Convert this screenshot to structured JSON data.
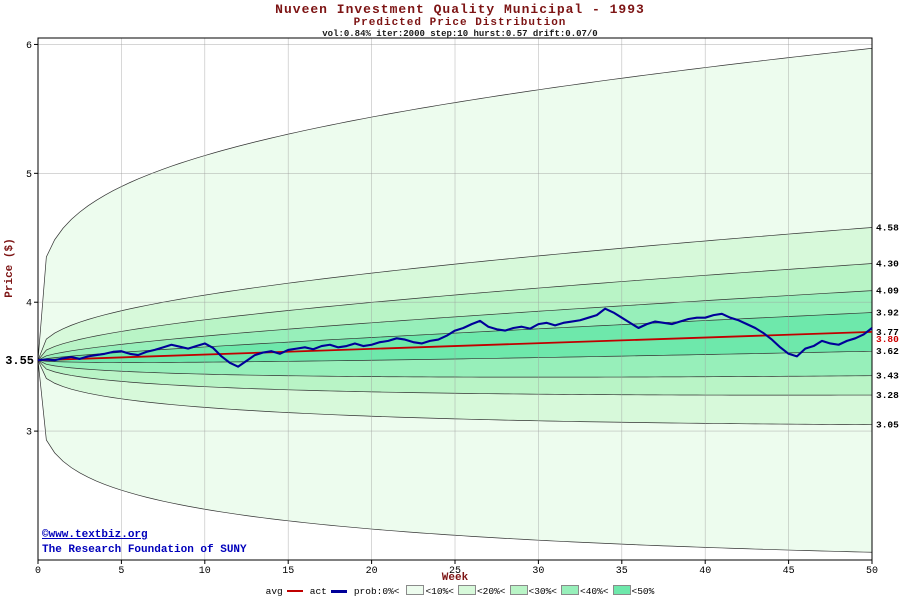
{
  "watermark": {
    "line1": "©www.textbiz.org",
    "line2": "The Research Foundation of SUNY"
  },
  "legend": {
    "avg": "avg",
    "act": "act",
    "prob_prefix": "prob:0%<",
    "swatch_labels": [
      "<10%<",
      "<20%<",
      "<30%<",
      "<40%<",
      "<50%"
    ]
  },
  "chart_data": {
    "type": "area",
    "title": "Nuveen Investment Quality Municipal - 1993",
    "subtitle": "Predicted Price Distribution",
    "params": "vol:0.84% iter:2000 step:10 hurst:0.57 drift:0.07/0",
    "xlabel": "Week",
    "ylabel": "Price ($)",
    "xlim": [
      0,
      50
    ],
    "ylim": [
      2.0,
      6.05
    ],
    "x_ticks": [
      0,
      5,
      10,
      15,
      20,
      25,
      30,
      35,
      40,
      45,
      50
    ],
    "y_ticks": [
      6,
      5,
      4,
      3
    ],
    "grid": true,
    "start_price": {
      "value": 3.55,
      "label": "3.55"
    },
    "avg": {
      "name": "avg",
      "start": 3.55,
      "end": 3.77,
      "color": "#c00000"
    },
    "act_final": {
      "value": 3.8,
      "label": "3.80",
      "color": "#cc0000"
    },
    "right_labels": [
      "4.58",
      "4.30",
      "4.09",
      "3.92",
      "3.77",
      "3.62",
      "3.43",
      "3.28",
      "3.05"
    ],
    "fan_bands": [
      {
        "quantile": "0%",
        "upper_end": 5.97,
        "lower_end": 2.06,
        "exponent": 0.22,
        "color": "#edfcee"
      },
      {
        "quantile": "10%",
        "upper_end": 4.58,
        "lower_end": 3.05,
        "exponent": 0.35,
        "color": "#d7f9da"
      },
      {
        "quantile": "20%",
        "upper_end": 4.3,
        "lower_end": 3.28,
        "exponent": 0.42,
        "color": "#b9f4c6"
      },
      {
        "quantile": "30%",
        "upper_end": 4.09,
        "lower_end": 3.43,
        "exponent": 0.5,
        "color": "#97efba"
      },
      {
        "quantile": "40%",
        "upper_end": 3.92,
        "lower_end": 3.62,
        "exponent": 0.58,
        "color": "#6ee8ab"
      }
    ],
    "act_series": {
      "name": "act",
      "color": "#000099",
      "x_step": 0.5,
      "values": [
        3.55,
        3.555,
        3.55,
        3.565,
        3.575,
        3.56,
        3.58,
        3.59,
        3.6,
        3.615,
        3.62,
        3.6,
        3.59,
        3.615,
        3.63,
        3.65,
        3.67,
        3.655,
        3.64,
        3.66,
        3.68,
        3.645,
        3.58,
        3.53,
        3.5,
        3.545,
        3.59,
        3.61,
        3.62,
        3.6,
        3.63,
        3.64,
        3.65,
        3.635,
        3.66,
        3.67,
        3.65,
        3.66,
        3.68,
        3.66,
        3.67,
        3.69,
        3.7,
        3.72,
        3.71,
        3.69,
        3.68,
        3.7,
        3.71,
        3.74,
        3.78,
        3.8,
        3.83,
        3.855,
        3.81,
        3.79,
        3.78,
        3.8,
        3.81,
        3.795,
        3.83,
        3.84,
        3.82,
        3.84,
        3.85,
        3.86,
        3.88,
        3.9,
        3.95,
        3.92,
        3.88,
        3.84,
        3.8,
        3.83,
        3.85,
        3.84,
        3.83,
        3.85,
        3.87,
        3.88,
        3.88,
        3.9,
        3.91,
        3.88,
        3.86,
        3.83,
        3.8,
        3.76,
        3.71,
        3.65,
        3.6,
        3.58,
        3.64,
        3.66,
        3.7,
        3.68,
        3.67,
        3.7,
        3.72,
        3.75,
        3.8
      ]
    }
  }
}
